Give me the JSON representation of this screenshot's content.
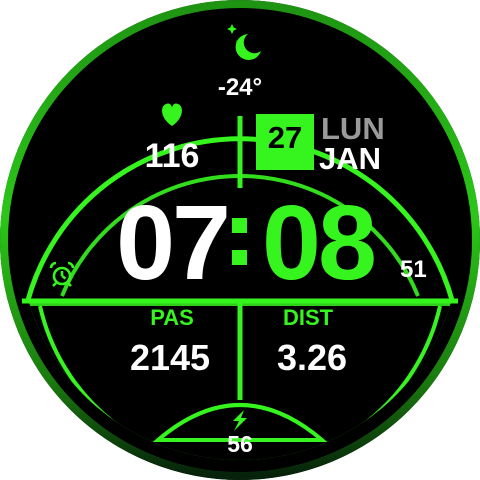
{
  "weather": {
    "temperature": "-24°",
    "icon": "moon-stars-icon"
  },
  "heart": {
    "value": "116",
    "icon": "heart-icon"
  },
  "date": {
    "day_number": "27",
    "weekday": "LUN",
    "month": "JAN"
  },
  "time": {
    "hours": "07",
    "minutes": "08",
    "seconds": "51"
  },
  "alarm": {
    "icon": "alarm-clock-icon"
  },
  "steps": {
    "label": "PAS",
    "value": "2145"
  },
  "distance": {
    "label": "DIST",
    "value": "3.26"
  },
  "battery": {
    "value": "56",
    "icon": "lightning-bolt-icon"
  },
  "colors": {
    "accent": "#36f51f",
    "background": "#000000",
    "weekday": "#9a9a9a"
  }
}
